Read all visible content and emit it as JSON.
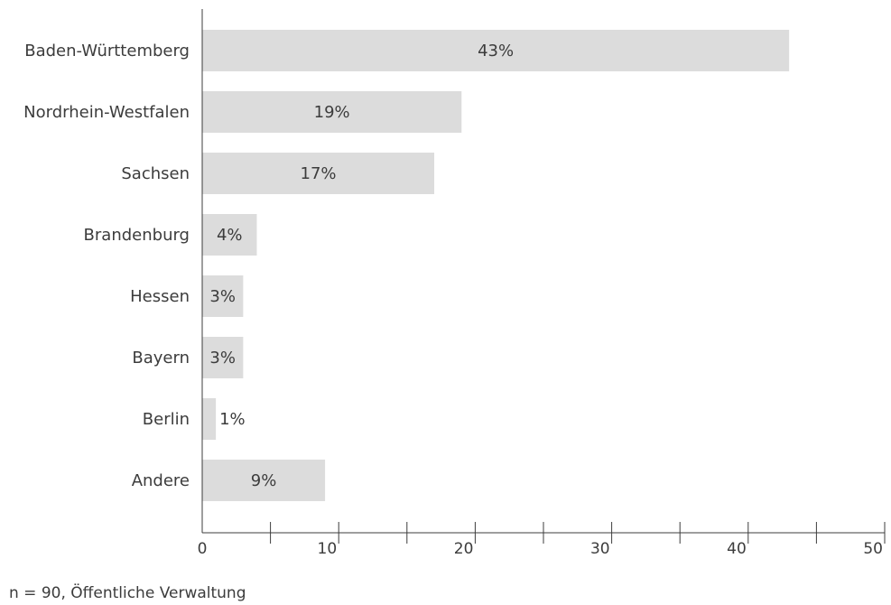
{
  "chart_data": {
    "type": "bar",
    "orientation": "horizontal",
    "categories": [
      "Baden-Württemberg",
      "Nordrhein-Westfalen",
      "Sachsen",
      "Brandenburg",
      "Hessen",
      "Bayern",
      "Berlin",
      "Andere"
    ],
    "values": [
      43,
      19,
      17,
      4,
      3,
      3,
      1,
      9
    ],
    "value_labels": [
      "43%",
      "19%",
      "17%",
      "4%",
      "3%",
      "3%",
      "1%",
      "9%"
    ],
    "xlim": [
      0,
      50
    ],
    "x_ticks": [
      0,
      10,
      20,
      30,
      40,
      50
    ],
    "x_minor_ticks": [
      5,
      15,
      25,
      35,
      45
    ],
    "title": "",
    "xlabel": "",
    "ylabel": "",
    "bar_color": "#dcdcdc",
    "grid": false,
    "legend": "none"
  },
  "note": "n = 90, Öffentliche Verwaltung"
}
